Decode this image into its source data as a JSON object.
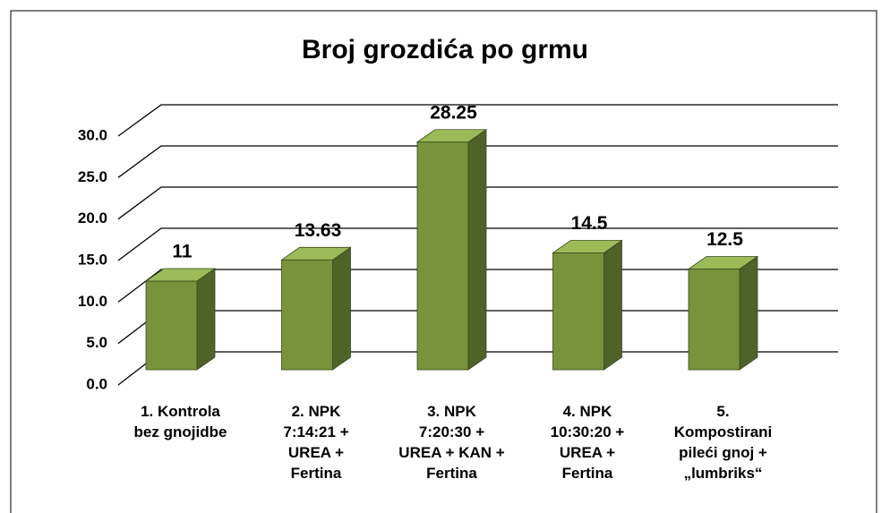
{
  "chart_data": {
    "type": "bar3d",
    "title": "Broj grozdića po grmu",
    "categories": [
      "1. Kontrola\nbez gnojidbe",
      "2. NPK\n7:14:21 +\nUREA +\nFertina",
      "3. NPK\n7:20:30 +\nUREA + KAN +\nFertina",
      "4. NPK\n10:30:20 +\nUREA +\nFertina",
      "5.\nKompostirani\npileći gnoj +\n„lumbriks“"
    ],
    "values": [
      11,
      13.63,
      28.25,
      14.5,
      12.5
    ],
    "color": "#77933c",
    "ylim": [
      0,
      30
    ],
    "yticks": [
      {
        "value": 0,
        "label": "0.0"
      },
      {
        "value": 5,
        "label": "5.0"
      },
      {
        "value": 10,
        "label": "10.0"
      },
      {
        "value": 15,
        "label": "15.0"
      },
      {
        "value": 20,
        "label": "20.0"
      },
      {
        "value": 25,
        "label": "25.0"
      },
      {
        "value": 30,
        "label": "30.0"
      }
    ],
    "grid": true
  }
}
